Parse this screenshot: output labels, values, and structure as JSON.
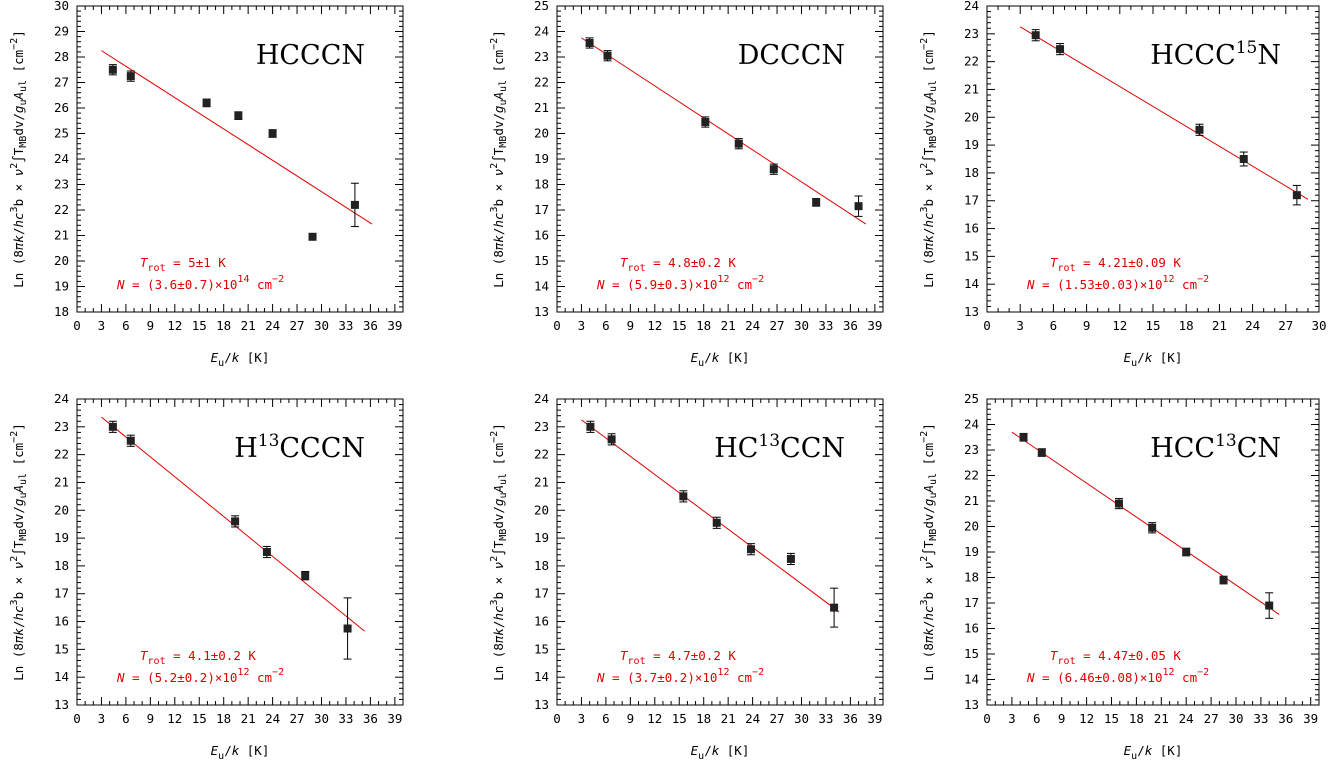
{
  "figure": {
    "xlabel": "E_u/k [K]",
    "ylabel": "Ln (8πk/hc³b × ν² ∫T_MB dv / g_u A_ul [cm⁻²]"
  },
  "chart_data": [
    {
      "type": "scatter",
      "title": "HCCCN",
      "title_base": "HCCCN",
      "title_sup": "",
      "title_tail": "",
      "xlim": [
        0,
        40
      ],
      "ylim": [
        18,
        30
      ],
      "xticks": [
        0,
        3,
        6,
        9,
        12,
        15,
        18,
        21,
        24,
        27,
        30,
        33,
        36,
        39
      ],
      "yticks": [
        18,
        19,
        20,
        21,
        22,
        23,
        24,
        25,
        26,
        27,
        28,
        29,
        30
      ],
      "points": [
        {
          "x": 4.4,
          "y": 27.5,
          "err": 0.2
        },
        {
          "x": 6.6,
          "y": 27.25,
          "err": 0.2
        },
        {
          "x": 15.9,
          "y": 26.2,
          "err": 0.15
        },
        {
          "x": 19.8,
          "y": 25.7,
          "err": 0.15
        },
        {
          "x": 24.0,
          "y": 25.0,
          "err": 0.15
        },
        {
          "x": 28.9,
          "y": 20.95,
          "err": 0.12
        },
        {
          "x": 34.1,
          "y": 22.2,
          "err": 0.85
        }
      ],
      "fit": {
        "x": [
          3,
          36.2
        ],
        "y": [
          28.25,
          21.45
        ]
      },
      "trot_label": "T",
      "trot_sub": "rot",
      "trot_value": " = 5±1 K",
      "n_label": "N",
      "n_value": " = (3.6±0.7)×10",
      "n_exp": "14",
      "n_unit": " cm",
      "n_unit_exp": "−2",
      "color": "#e00000"
    },
    {
      "type": "scatter",
      "title": "DCCCN",
      "title_base": "DCCCN",
      "title_sup": "",
      "title_tail": "",
      "xlim": [
        0,
        40
      ],
      "ylim": [
        13,
        25
      ],
      "xticks": [
        0,
        3,
        6,
        9,
        12,
        15,
        18,
        21,
        24,
        27,
        30,
        33,
        36,
        39
      ],
      "yticks": [
        13,
        14,
        15,
        16,
        17,
        18,
        19,
        20,
        21,
        22,
        23,
        24,
        25
      ],
      "points": [
        {
          "x": 4.0,
          "y": 23.55,
          "err": 0.2
        },
        {
          "x": 6.2,
          "y": 23.05,
          "err": 0.2
        },
        {
          "x": 18.2,
          "y": 20.45,
          "err": 0.2
        },
        {
          "x": 22.3,
          "y": 19.6,
          "err": 0.2
        },
        {
          "x": 26.6,
          "y": 18.6,
          "err": 0.2
        },
        {
          "x": 31.8,
          "y": 17.3,
          "err": 0.15
        },
        {
          "x": 37.0,
          "y": 17.15,
          "err": 0.4
        }
      ],
      "fit": {
        "x": [
          3,
          37.9
        ],
        "y": [
          23.75,
          16.45
        ]
      },
      "trot_label": "T",
      "trot_sub": "rot",
      "trot_value": " = 4.8±0.2 K",
      "n_label": "N",
      "n_value": " = (5.9±0.3)×10",
      "n_exp": "12",
      "n_unit": " cm",
      "n_unit_exp": "−2",
      "color": "#e00000"
    },
    {
      "type": "scatter",
      "title": "HCCC15N",
      "title_base": "HCCC",
      "title_sup": "15",
      "title_tail": "N",
      "xlim": [
        0,
        30
      ],
      "ylim": [
        13,
        24
      ],
      "xticks": [
        0,
        3,
        6,
        9,
        12,
        15,
        18,
        21,
        24,
        27,
        30
      ],
      "yticks": [
        13,
        14,
        15,
        16,
        17,
        18,
        19,
        20,
        21,
        22,
        23,
        24
      ],
      "points": [
        {
          "x": 4.4,
          "y": 22.95,
          "err": 0.2
        },
        {
          "x": 6.6,
          "y": 22.45,
          "err": 0.2
        },
        {
          "x": 19.2,
          "y": 19.55,
          "err": 0.2
        },
        {
          "x": 23.2,
          "y": 18.5,
          "err": 0.25
        },
        {
          "x": 28.0,
          "y": 17.2,
          "err": 0.35
        }
      ],
      "fit": {
        "x": [
          3,
          29
        ],
        "y": [
          23.25,
          17.05
        ]
      },
      "trot_label": "T",
      "trot_sub": "rot",
      "trot_value": " = 4.21±0.09 K",
      "n_label": "N",
      "n_value": " = (1.53±0.03)×10",
      "n_exp": "12",
      "n_unit": " cm",
      "n_unit_exp": "−2",
      "color": "#e00000"
    },
    {
      "type": "scatter",
      "title": "H13CCCN",
      "title_base": "H",
      "title_sup": "13",
      "title_tail": "CCCN",
      "xlim": [
        0,
        40
      ],
      "ylim": [
        13,
        24
      ],
      "xticks": [
        0,
        3,
        6,
        9,
        12,
        15,
        18,
        21,
        24,
        27,
        30,
        33,
        36,
        39
      ],
      "yticks": [
        13,
        14,
        15,
        16,
        17,
        18,
        19,
        20,
        21,
        22,
        23,
        24
      ],
      "points": [
        {
          "x": 4.4,
          "y": 23.0,
          "err": 0.2
        },
        {
          "x": 6.6,
          "y": 22.5,
          "err": 0.2
        },
        {
          "x": 19.4,
          "y": 19.6,
          "err": 0.2
        },
        {
          "x": 23.3,
          "y": 18.5,
          "err": 0.2
        },
        {
          "x": 28.0,
          "y": 17.65,
          "err": 0.15
        },
        {
          "x": 33.2,
          "y": 15.75,
          "err": 1.1
        }
      ],
      "fit": {
        "x": [
          3,
          35.3
        ],
        "y": [
          23.35,
          15.65
        ]
      },
      "trot_label": "T",
      "trot_sub": "rot",
      "trot_value": " = 4.1±0.2 K",
      "n_label": "N",
      "n_value": " = (5.2±0.2)×10",
      "n_exp": "12",
      "n_unit": " cm",
      "n_unit_exp": "−2",
      "color": "#e00000"
    },
    {
      "type": "scatter",
      "title": "HC13CCN",
      "title_base": "HC",
      "title_sup": "13",
      "title_tail": "CCN",
      "xlim": [
        0,
        40
      ],
      "ylim": [
        13,
        24
      ],
      "xticks": [
        0,
        3,
        6,
        9,
        12,
        15,
        18,
        21,
        24,
        27,
        30,
        33,
        36,
        39
      ],
      "yticks": [
        13,
        14,
        15,
        16,
        17,
        18,
        19,
        20,
        21,
        22,
        23,
        24
      ],
      "points": [
        {
          "x": 4.1,
          "y": 23.0,
          "err": 0.2
        },
        {
          "x": 6.7,
          "y": 22.55,
          "err": 0.2
        },
        {
          "x": 15.5,
          "y": 20.5,
          "err": 0.2
        },
        {
          "x": 19.6,
          "y": 19.55,
          "err": 0.2
        },
        {
          "x": 23.8,
          "y": 18.6,
          "err": 0.2
        },
        {
          "x": 28.7,
          "y": 18.25,
          "err": 0.2
        },
        {
          "x": 34.0,
          "y": 16.5,
          "err": 0.7
        }
      ],
      "fit": {
        "x": [
          3,
          34.6
        ],
        "y": [
          23.25,
          16.35
        ]
      },
      "trot_label": "T",
      "trot_sub": "rot",
      "trot_value": " = 4.7±0.2 K",
      "n_label": "N",
      "n_value": " = (3.7±0.2)×10",
      "n_exp": "12",
      "n_unit": " cm",
      "n_unit_exp": "−2",
      "color": "#e00000"
    },
    {
      "type": "scatter",
      "title": "HCC13CN",
      "title_base": "HCC",
      "title_sup": "13",
      "title_tail": "CN",
      "xlim": [
        0,
        40
      ],
      "ylim": [
        13,
        25
      ],
      "xticks": [
        0,
        3,
        6,
        9,
        12,
        15,
        18,
        21,
        24,
        27,
        30,
        33,
        36,
        39
      ],
      "yticks": [
        13,
        14,
        15,
        16,
        17,
        18,
        19,
        20,
        21,
        22,
        23,
        24,
        25
      ],
      "points": [
        {
          "x": 4.4,
          "y": 23.5,
          "err": 0.15
        },
        {
          "x": 6.6,
          "y": 22.9,
          "err": 0.15
        },
        {
          "x": 15.9,
          "y": 20.9,
          "err": 0.2
        },
        {
          "x": 19.9,
          "y": 19.95,
          "err": 0.2
        },
        {
          "x": 24.0,
          "y": 19.0,
          "err": 0.15
        },
        {
          "x": 28.5,
          "y": 17.9,
          "err": 0.15
        },
        {
          "x": 34.0,
          "y": 16.9,
          "err": 0.5
        }
      ],
      "fit": {
        "x": [
          3,
          35.2
        ],
        "y": [
          23.7,
          16.55
        ]
      },
      "trot_label": "T",
      "trot_sub": "rot",
      "trot_value": " = 4.47±0.05 K",
      "n_label": "N",
      "n_value": " = (6.46±0.08)×10",
      "n_exp": "12",
      "n_unit": " cm",
      "n_unit_exp": "−2",
      "color": "#e00000"
    }
  ]
}
